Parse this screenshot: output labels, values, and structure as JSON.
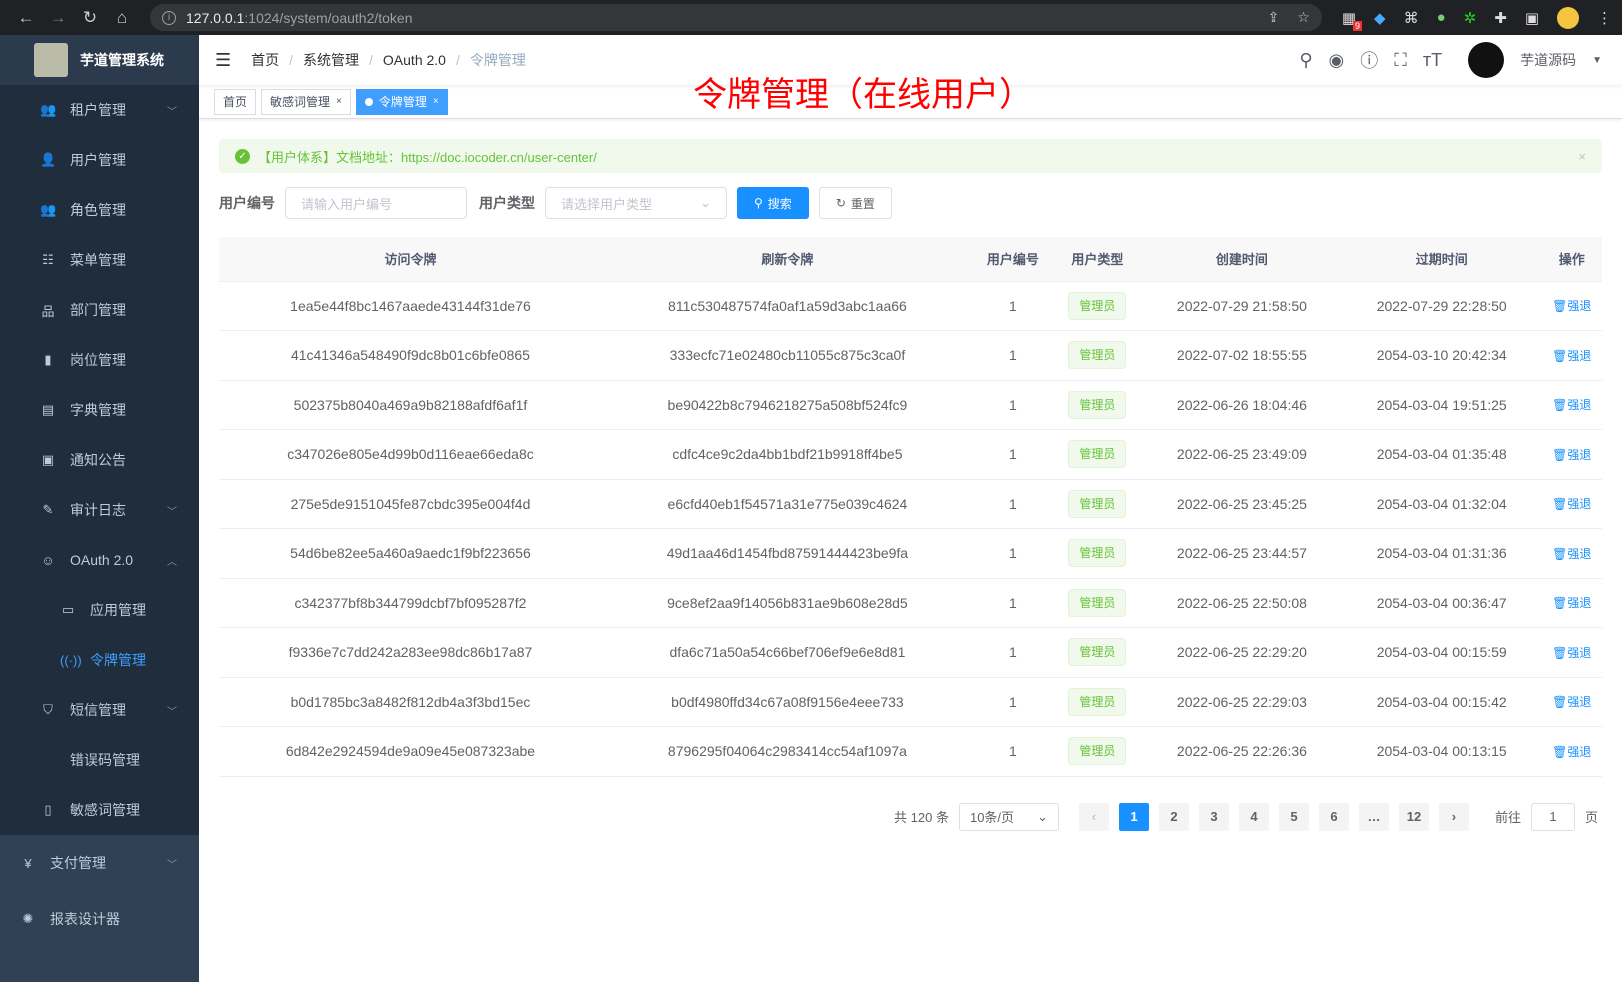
{
  "browser": {
    "url_host": "127.0.0.1",
    "url_path": ":1024/system/oauth2/token",
    "ext_badge": "9"
  },
  "sidebar": {
    "title": "芋道管理系统",
    "items": [
      {
        "label": "租户管理",
        "icon": "tenant-icon",
        "chevron": true
      },
      {
        "label": "用户管理",
        "icon": "user-icon"
      },
      {
        "label": "角色管理",
        "icon": "role-icon"
      },
      {
        "label": "菜单管理",
        "icon": "tree-table-icon"
      },
      {
        "label": "部门管理",
        "icon": "org-tree-icon"
      },
      {
        "label": "岗位管理",
        "icon": "post-icon"
      },
      {
        "label": "字典管理",
        "icon": "dict-icon"
      },
      {
        "label": "通知公告",
        "icon": "message-icon"
      },
      {
        "label": "审计日志",
        "icon": "log-icon",
        "chevron": true
      },
      {
        "label": "OAuth 2.0",
        "icon": "oauth-icon",
        "chevron": true,
        "expanded": true
      },
      {
        "label": "应用管理",
        "icon": "app-icon",
        "sub": true
      },
      {
        "label": "令牌管理",
        "icon": "token-icon",
        "sub": true,
        "active": true
      },
      {
        "label": "短信管理",
        "icon": "sms-icon",
        "chevron": true
      },
      {
        "label": "错误码管理",
        "icon": "code-icon"
      },
      {
        "label": "敏感词管理",
        "icon": "book-icon"
      },
      {
        "label": "支付管理",
        "icon": "yen-icon",
        "chevron": true,
        "top": true
      },
      {
        "label": "报表设计器",
        "icon": "report-icon",
        "top": true
      }
    ]
  },
  "breadcrumb": [
    "首页",
    "系统管理",
    "OAuth 2.0",
    "令牌管理"
  ],
  "user": {
    "name": "芋道源码"
  },
  "tabs": [
    {
      "label": "首页"
    },
    {
      "label": "敏感词管理",
      "closable": true
    },
    {
      "label": "令牌管理",
      "closable": true,
      "active": true
    }
  ],
  "overlay_title": "令牌管理（在线用户）",
  "alert": {
    "text": "【用户体系】文档地址：https://doc.iocoder.cn/user-center/"
  },
  "filters": {
    "user_id_label": "用户编号",
    "user_id_placeholder": "请输入用户编号",
    "user_type_label": "用户类型",
    "user_type_placeholder": "请选择用户类型",
    "search": "搜索",
    "reset": "重置"
  },
  "table": {
    "headers": [
      "访问令牌",
      "刷新令牌",
      "用户编号",
      "用户类型",
      "创建时间",
      "过期时间",
      "操作"
    ],
    "rows": [
      [
        "1ea5e44f8bc1467aaede43144f31de76",
        "811c530487574fa0af1a59d3abc1aa66",
        "1",
        "管理员",
        "2022-07-29 21:58:50",
        "2022-07-29 22:28:50",
        "强退"
      ],
      [
        "41c41346a548490f9dc8b01c6bfe0865",
        "333ecfc71e02480cb11055c875c3ca0f",
        "1",
        "管理员",
        "2022-07-02 18:55:55",
        "2054-03-10 20:42:34",
        "强退"
      ],
      [
        "502375b8040a469a9b82188afdf6af1f",
        "be90422b8c7946218275a508bf524fc9",
        "1",
        "管理员",
        "2022-06-26 18:04:46",
        "2054-03-04 19:51:25",
        "强退"
      ],
      [
        "c347026e805e4d99b0d116eae66eda8c",
        "cdfc4ce9c2da4bb1bdf21b9918ff4be5",
        "1",
        "管理员",
        "2022-06-25 23:49:09",
        "2054-03-04 01:35:48",
        "强退"
      ],
      [
        "275e5de9151045fe87cbdc395e004f4d",
        "e6cfd40eb1f54571a31e775e039c4624",
        "1",
        "管理员",
        "2022-06-25 23:45:25",
        "2054-03-04 01:32:04",
        "强退"
      ],
      [
        "54d6be82ee5a460a9aedc1f9bf223656",
        "49d1aa46d1454fbd87591444423be9fa",
        "1",
        "管理员",
        "2022-06-25 23:44:57",
        "2054-03-04 01:31:36",
        "强退"
      ],
      [
        "c342377bf8b344799dcbf7bf095287f2",
        "9ce8ef2aa9f14056b831ae9b608e28d5",
        "1",
        "管理员",
        "2022-06-25 22:50:08",
        "2054-03-04 00:36:47",
        "强退"
      ],
      [
        "f9336e7c7dd242a283ee98dc86b17a87",
        "dfa6c71a50a54c66bef706ef9e6e8d81",
        "1",
        "管理员",
        "2022-06-25 22:29:20",
        "2054-03-04 00:15:59",
        "强退"
      ],
      [
        "b0d1785bc3a8482f812db4a3f3bd15ec",
        "b0df4980ffd34c67a08f9156e4eee733",
        "1",
        "管理员",
        "2022-06-25 22:29:03",
        "2054-03-04 00:15:42",
        "强退"
      ],
      [
        "6d842e2924594de9a09e45e087323abe",
        "8796295f04064c2983414cc54af1097a",
        "1",
        "管理员",
        "2022-06-25 22:26:36",
        "2054-03-04 00:13:15",
        "强退"
      ]
    ]
  },
  "pagination": {
    "total": "共 120 条",
    "page_size": "10条/页",
    "pages": [
      "1",
      "2",
      "3",
      "4",
      "5",
      "6",
      "…",
      "12"
    ],
    "current": "1",
    "goto_label": "前往",
    "goto_value": "1",
    "goto_suffix": "页"
  }
}
